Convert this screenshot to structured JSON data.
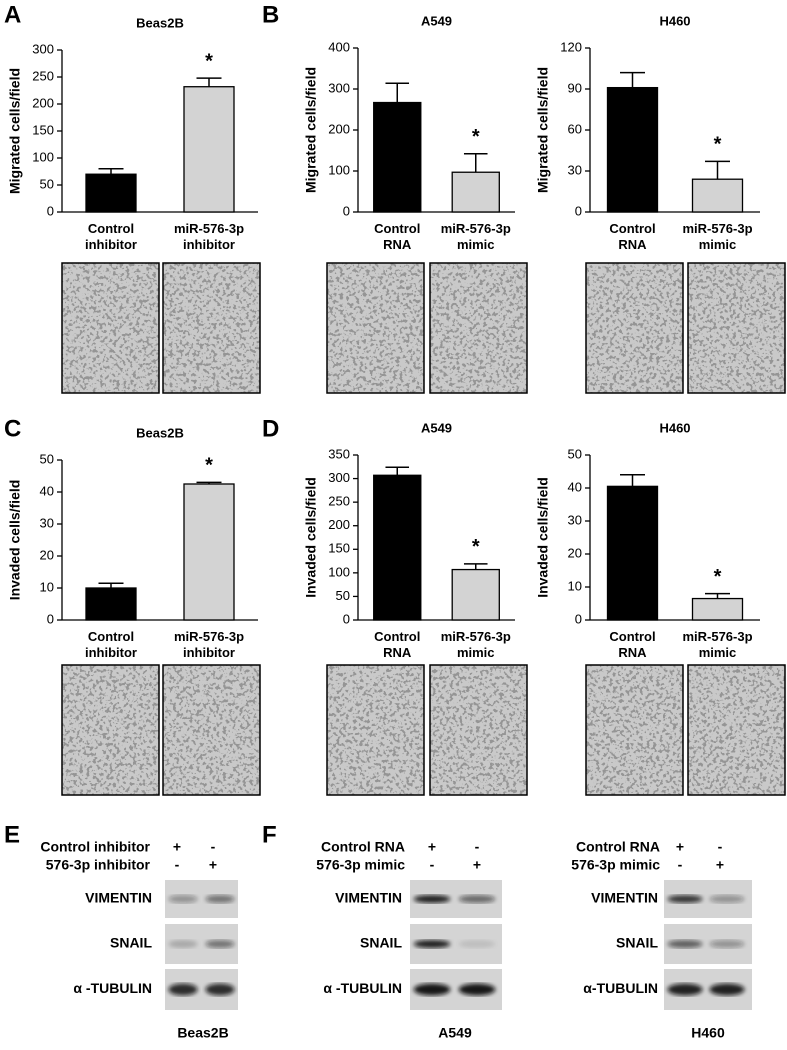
{
  "panels": [
    "A",
    "B",
    "C",
    "D",
    "E",
    "F"
  ],
  "chart_data": [
    {
      "type": "bar",
      "title": "Beas2B",
      "ylabel": "Migrated cells/field",
      "categories": [
        "Control inhibitor",
        "miR-576-3p inhibitor"
      ],
      "values": [
        70,
        232
      ],
      "errors": [
        10,
        16
      ],
      "colors": [
        "#000000",
        "#d3d3d3"
      ],
      "ylim": [
        0,
        300
      ],
      "yticks": [
        0,
        50,
        100,
        150,
        200,
        250,
        300
      ],
      "annotation": "*"
    },
    {
      "type": "bar",
      "title": "A549",
      "ylabel": "Migrated cells/field",
      "categories": [
        "Control RNA",
        "miR-576-3p mimic"
      ],
      "values": [
        267,
        97
      ],
      "errors": [
        47,
        45
      ],
      "colors": [
        "#000000",
        "#d3d3d3"
      ],
      "ylim": [
        0,
        400
      ],
      "yticks": [
        0,
        100,
        200,
        300,
        400
      ],
      "annotation": "*"
    },
    {
      "type": "bar",
      "title": "H460",
      "ylabel": "Migrated cells/field",
      "categories": [
        "Control RNA",
        "miR-576-3p mimic"
      ],
      "values": [
        91,
        24
      ],
      "errors": [
        11,
        13
      ],
      "colors": [
        "#000000",
        "#d3d3d3"
      ],
      "ylim": [
        0,
        120
      ],
      "yticks": [
        0,
        30,
        60,
        90,
        120
      ],
      "annotation": "*"
    },
    {
      "type": "bar",
      "title": "Beas2B",
      "ylabel": "Invaded cells/field",
      "categories": [
        "Control inhibitor",
        "miR-576-3p inhibitor"
      ],
      "values": [
        10,
        42.5
      ],
      "errors": [
        1.5,
        0.5
      ],
      "colors": [
        "#000000",
        "#d3d3d3"
      ],
      "ylim": [
        0,
        50
      ],
      "yticks": [
        0,
        10,
        20,
        30,
        40,
        50
      ],
      "annotation": "*"
    },
    {
      "type": "bar",
      "title": "A549",
      "ylabel": "Invaded cells/field",
      "categories": [
        "Control RNA",
        "miR-576-3p mimic"
      ],
      "values": [
        307,
        107
      ],
      "errors": [
        17,
        12
      ],
      "colors": [
        "#000000",
        "#d3d3d3"
      ],
      "ylim": [
        0,
        350
      ],
      "yticks": [
        0,
        50,
        100,
        150,
        200,
        250,
        300,
        350
      ],
      "annotation": "*"
    },
    {
      "type": "bar",
      "title": "H460",
      "ylabel": "Invaded cells/field",
      "categories": [
        "Control RNA",
        "miR-576-3p mimic"
      ],
      "values": [
        40.5,
        6.5
      ],
      "errors": [
        3.5,
        1.5
      ],
      "colors": [
        "#000000",
        "#d3d3d3"
      ],
      "ylim": [
        0,
        50
      ],
      "yticks": [
        0,
        10,
        20,
        30,
        40,
        50
      ],
      "annotation": "*"
    }
  ],
  "blots": [
    {
      "conditions": [
        {
          "label": "Control inhibitor",
          "marks": [
            "+",
            "-"
          ]
        },
        {
          "label": "576-3p inhibitor",
          "marks": [
            "-",
            "+"
          ]
        }
      ],
      "proteins": [
        "VIMENTIN",
        "SNAIL",
        "α -TUBULIN"
      ],
      "cell_line": "Beas2B"
    },
    {
      "conditions": [
        {
          "label": "Control RNA",
          "marks": [
            "+",
            "-"
          ]
        },
        {
          "label": "576-3p mimic",
          "marks": [
            "-",
            "+"
          ]
        }
      ],
      "proteins": [
        "VIMENTIN",
        "SNAIL",
        "α -TUBULIN"
      ],
      "cell_line": "A549"
    },
    {
      "conditions": [
        {
          "label": "Control RNA",
          "marks": [
            "+",
            "-"
          ]
        },
        {
          "label": "576-3p mimic",
          "marks": [
            "-",
            "+"
          ]
        }
      ],
      "proteins": [
        "VIMENTIN",
        "SNAIL",
        "α-TUBULIN"
      ],
      "cell_line": "H460"
    }
  ]
}
